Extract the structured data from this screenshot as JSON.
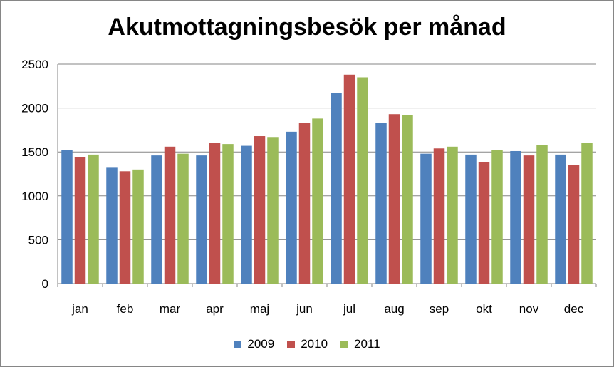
{
  "chart_data": {
    "type": "bar",
    "title": "Akutmottagningsbesök per månad",
    "categories": [
      "jan",
      "feb",
      "mar",
      "apr",
      "maj",
      "jun",
      "jul",
      "aug",
      "sep",
      "okt",
      "nov",
      "dec"
    ],
    "series": [
      {
        "name": "2009",
        "color": "#4F81BD",
        "values": [
          1520,
          1320,
          1460,
          1460,
          1570,
          1730,
          2170,
          1830,
          1480,
          1470,
          1510,
          1470
        ]
      },
      {
        "name": "2010",
        "color": "#C0504D",
        "values": [
          1440,
          1280,
          1560,
          1600,
          1680,
          1830,
          2380,
          1930,
          1540,
          1380,
          1460,
          1350
        ]
      },
      {
        "name": "2011",
        "color": "#9BBB59",
        "values": [
          1470,
          1300,
          1480,
          1590,
          1670,
          1880,
          2350,
          1920,
          1560,
          1520,
          1580,
          1600
        ]
      }
    ],
    "ylim": [
      0,
      2500
    ],
    "yticks": [
      0,
      500,
      1000,
      1500,
      2000,
      2500
    ],
    "xlabel": "",
    "ylabel": "",
    "grid": true,
    "legend_position": "bottom"
  }
}
